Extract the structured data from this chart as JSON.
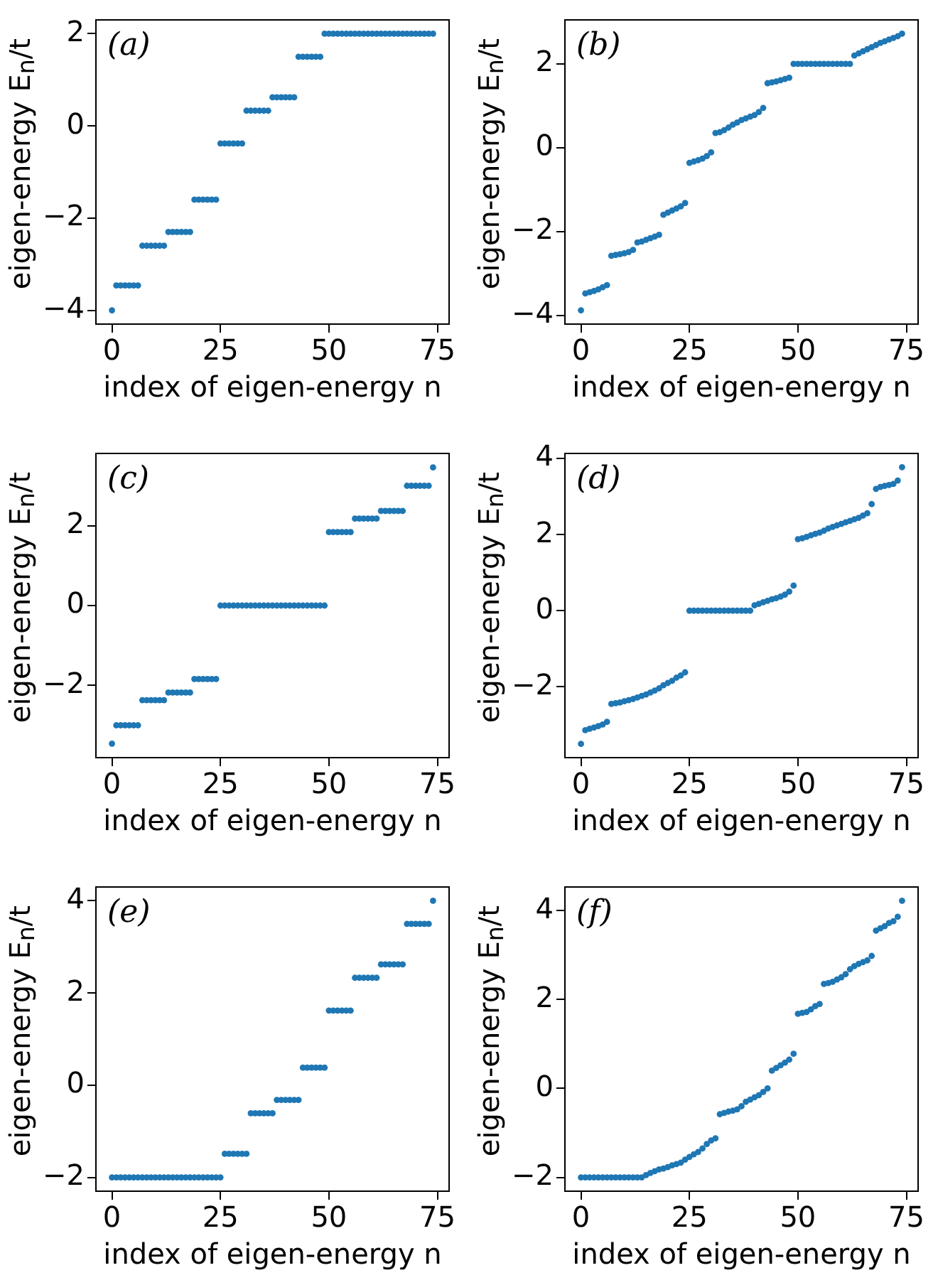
{
  "chart_data": [
    {
      "type": "scatter",
      "annotations": [
        "(a)"
      ],
      "xlabel": "index of eigen-energy n",
      "ylabel": "eigen-energy E$_{n}$/t",
      "marker": "circle",
      "color": "#1f77b4",
      "xlim": [
        -3.7,
        77.7
      ],
      "ylim": [
        -4.3,
        2.3
      ],
      "xticks": [
        0,
        25,
        50,
        75
      ],
      "yticks": [
        -4,
        -2,
        0,
        2
      ],
      "x": [
        0,
        1,
        2,
        3,
        4,
        5,
        6,
        7,
        8,
        9,
        10,
        11,
        12,
        13,
        14,
        15,
        16,
        17,
        18,
        19,
        20,
        21,
        22,
        23,
        24,
        25,
        26,
        27,
        28,
        29,
        30,
        31,
        32,
        33,
        34,
        35,
        36,
        37,
        38,
        39,
        40,
        41,
        42,
        43,
        44,
        45,
        46,
        47,
        48,
        49,
        50,
        51,
        52,
        53,
        54,
        55,
        56,
        57,
        58,
        59,
        60,
        61,
        62,
        63,
        64,
        65,
        66,
        67,
        68,
        69,
        70,
        71,
        72,
        73,
        74
      ],
      "values": [
        -4.0,
        -3.46,
        -3.46,
        -3.46,
        -3.46,
        -3.46,
        -3.46,
        -2.6,
        -2.6,
        -2.6,
        -2.6,
        -2.6,
        -2.6,
        -2.3,
        -2.3,
        -2.3,
        -2.3,
        -2.3,
        -2.3,
        -1.6,
        -1.6,
        -1.6,
        -1.6,
        -1.6,
        -1.6,
        -0.38,
        -0.38,
        -0.38,
        -0.38,
        -0.38,
        -0.38,
        0.33,
        0.33,
        0.33,
        0.33,
        0.33,
        0.33,
        0.62,
        0.62,
        0.62,
        0.62,
        0.62,
        0.62,
        1.5,
        1.5,
        1.5,
        1.5,
        1.5,
        1.5,
        2.0,
        2.0,
        2.0,
        2.0,
        2.0,
        2.0,
        2.0,
        2.0,
        2.0,
        2.0,
        2.0,
        2.0,
        2.0,
        2.0,
        2.0,
        2.0,
        2.0,
        2.0,
        2.0,
        2.0,
        2.0,
        2.0,
        2.0,
        2.0,
        2.0,
        2.0
      ]
    },
    {
      "type": "scatter",
      "annotations": [
        "(b)"
      ],
      "xlabel": "index of eigen-energy n",
      "ylabel": "eigen-energy E$_{n}$/t",
      "marker": "circle",
      "color": "#1f77b4",
      "xlim": [
        -3.7,
        77.7
      ],
      "ylim": [
        -4.21,
        3.05
      ],
      "xticks": [
        0,
        25,
        50,
        75
      ],
      "yticks": [
        -4,
        -2,
        0,
        2
      ],
      "x": [
        0,
        1,
        2,
        3,
        4,
        5,
        6,
        7,
        8,
        9,
        10,
        11,
        12,
        13,
        14,
        15,
        16,
        17,
        18,
        19,
        20,
        21,
        22,
        23,
        24,
        25,
        26,
        27,
        28,
        29,
        30,
        31,
        32,
        33,
        34,
        35,
        36,
        37,
        38,
        39,
        40,
        41,
        42,
        43,
        44,
        45,
        46,
        47,
        48,
        49,
        50,
        51,
        52,
        53,
        54,
        55,
        56,
        57,
        58,
        59,
        60,
        61,
        62,
        63,
        64,
        65,
        66,
        67,
        68,
        69,
        70,
        71,
        72,
        73,
        74
      ],
      "values": [
        -3.88,
        -3.48,
        -3.45,
        -3.42,
        -3.38,
        -3.33,
        -3.28,
        -2.58,
        -2.56,
        -2.54,
        -2.52,
        -2.49,
        -2.44,
        -2.26,
        -2.24,
        -2.2,
        -2.16,
        -2.12,
        -2.08,
        -1.6,
        -1.55,
        -1.5,
        -1.45,
        -1.4,
        -1.32,
        -0.36,
        -0.33,
        -0.3,
        -0.26,
        -0.2,
        -0.11,
        0.35,
        0.37,
        0.42,
        0.48,
        0.55,
        0.6,
        0.66,
        0.7,
        0.74,
        0.78,
        0.85,
        0.95,
        1.54,
        1.56,
        1.58,
        1.61,
        1.64,
        1.67,
        2.0,
        2.0,
        2.0,
        2.0,
        2.0,
        2.0,
        2.0,
        2.0,
        2.0,
        2.0,
        2.0,
        2.0,
        2.0,
        2.0,
        2.2,
        2.25,
        2.3,
        2.35,
        2.4,
        2.45,
        2.5,
        2.54,
        2.58,
        2.62,
        2.66,
        2.72
      ]
    },
    {
      "type": "scatter",
      "annotations": [
        "(c)"
      ],
      "xlabel": "index of eigen-energy n",
      "ylabel": "eigen-energy E$_{n}$/t",
      "marker": "circle",
      "color": "#1f77b4",
      "xlim": [
        -3.7,
        77.7
      ],
      "ylim": [
        -3.81,
        3.81
      ],
      "xticks": [
        0,
        25,
        50,
        75
      ],
      "yticks": [
        -2,
        0,
        2
      ],
      "x": [
        0,
        1,
        2,
        3,
        4,
        5,
        6,
        7,
        8,
        9,
        10,
        11,
        12,
        13,
        14,
        15,
        16,
        17,
        18,
        19,
        20,
        21,
        22,
        23,
        24,
        25,
        26,
        27,
        28,
        29,
        30,
        31,
        32,
        33,
        34,
        35,
        36,
        37,
        38,
        39,
        40,
        41,
        42,
        43,
        44,
        45,
        46,
        47,
        48,
        49,
        50,
        51,
        52,
        53,
        54,
        55,
        56,
        57,
        58,
        59,
        60,
        61,
        62,
        63,
        64,
        65,
        66,
        67,
        68,
        69,
        70,
        71,
        72,
        73,
        74
      ],
      "values": [
        -3.46,
        -3.0,
        -3.0,
        -3.0,
        -3.0,
        -3.0,
        -3.0,
        -2.37,
        -2.37,
        -2.37,
        -2.37,
        -2.37,
        -2.37,
        -2.18,
        -2.18,
        -2.18,
        -2.18,
        -2.18,
        -2.18,
        -1.84,
        -1.84,
        -1.84,
        -1.84,
        -1.84,
        -1.84,
        0,
        0,
        0,
        0,
        0,
        0,
        0,
        0,
        0,
        0,
        0,
        0,
        0,
        0,
        0,
        0,
        0,
        0,
        0,
        0,
        0,
        0,
        0,
        0,
        0,
        1.84,
        1.84,
        1.84,
        1.84,
        1.84,
        1.84,
        2.18,
        2.18,
        2.18,
        2.18,
        2.18,
        2.18,
        2.37,
        2.37,
        2.37,
        2.37,
        2.37,
        2.37,
        3.0,
        3.0,
        3.0,
        3.0,
        3.0,
        3.0,
        3.46
      ]
    },
    {
      "type": "scatter",
      "annotations": [
        "(d)"
      ],
      "xlabel": "index of eigen-energy n",
      "ylabel": "eigen-energy E$_{n}$/t",
      "marker": "circle",
      "color": "#1f77b4",
      "xlim": [
        -3.7,
        77.7
      ],
      "ylim": [
        -3.86,
        4.13
      ],
      "xticks": [
        0,
        25,
        50,
        75
      ],
      "yticks": [
        -2,
        0,
        2,
        4
      ],
      "x": [
        0,
        1,
        2,
        3,
        4,
        5,
        6,
        7,
        8,
        9,
        10,
        11,
        12,
        13,
        14,
        15,
        16,
        17,
        18,
        19,
        20,
        21,
        22,
        23,
        24,
        25,
        26,
        27,
        28,
        29,
        30,
        31,
        32,
        33,
        34,
        35,
        36,
        37,
        38,
        39,
        40,
        41,
        42,
        43,
        44,
        45,
        46,
        47,
        48,
        49,
        50,
        51,
        52,
        53,
        54,
        55,
        56,
        57,
        58,
        59,
        60,
        61,
        62,
        63,
        64,
        65,
        66,
        67,
        68,
        69,
        70,
        71,
        72,
        73,
        74
      ],
      "values": [
        -3.5,
        -3.14,
        -3.1,
        -3.07,
        -3.03,
        -2.99,
        -2.92,
        -2.45,
        -2.43,
        -2.41,
        -2.38,
        -2.35,
        -2.32,
        -2.28,
        -2.24,
        -2.2,
        -2.15,
        -2.1,
        -2.04,
        -1.96,
        -1.9,
        -1.84,
        -1.76,
        -1.7,
        -1.62,
        0,
        0,
        0,
        0,
        0,
        0,
        0,
        0,
        0,
        0,
        0,
        0,
        0,
        0,
        0,
        0.14,
        0.18,
        0.22,
        0.26,
        0.3,
        0.33,
        0.37,
        0.42,
        0.5,
        0.66,
        1.88,
        1.9,
        1.94,
        1.98,
        2.02,
        2.05,
        2.1,
        2.16,
        2.2,
        2.24,
        2.28,
        2.32,
        2.36,
        2.4,
        2.44,
        2.5,
        2.56,
        2.8,
        3.2,
        3.25,
        3.28,
        3.3,
        3.33,
        3.42,
        3.77
      ]
    },
    {
      "type": "scatter",
      "annotations": [
        "(e)"
      ],
      "xlabel": "index of eigen-energy n",
      "ylabel": "eigen-energy E$_{n}$/t",
      "marker": "circle",
      "color": "#1f77b4",
      "xlim": [
        -3.7,
        77.7
      ],
      "ylim": [
        -2.3,
        4.3
      ],
      "xticks": [
        0,
        25,
        50,
        75
      ],
      "yticks": [
        -2,
        0,
        2,
        4
      ],
      "x": [
        0,
        1,
        2,
        3,
        4,
        5,
        6,
        7,
        8,
        9,
        10,
        11,
        12,
        13,
        14,
        15,
        16,
        17,
        18,
        19,
        20,
        21,
        22,
        23,
        24,
        25,
        26,
        27,
        28,
        29,
        30,
        31,
        32,
        33,
        34,
        35,
        36,
        37,
        38,
        39,
        40,
        41,
        42,
        43,
        44,
        45,
        46,
        47,
        48,
        49,
        50,
        51,
        52,
        53,
        54,
        55,
        56,
        57,
        58,
        59,
        60,
        61,
        62,
        63,
        64,
        65,
        66,
        67,
        68,
        69,
        70,
        71,
        72,
        73,
        74
      ],
      "values": [
        -2,
        -2,
        -2,
        -2,
        -2,
        -2,
        -2,
        -2,
        -2,
        -2,
        -2,
        -2,
        -2,
        -2,
        -2,
        -2,
        -2,
        -2,
        -2,
        -2,
        -2,
        -2,
        -2,
        -2,
        -2,
        -2,
        -1.49,
        -1.49,
        -1.49,
        -1.49,
        -1.49,
        -1.49,
        -0.61,
        -0.61,
        -0.61,
        -0.61,
        -0.61,
        -0.61,
        -0.32,
        -0.32,
        -0.32,
        -0.32,
        -0.32,
        -0.32,
        0.38,
        0.38,
        0.38,
        0.38,
        0.38,
        0.38,
        1.62,
        1.62,
        1.62,
        1.62,
        1.62,
        1.62,
        2.33,
        2.33,
        2.33,
        2.33,
        2.33,
        2.33,
        2.62,
        2.62,
        2.62,
        2.62,
        2.62,
        2.62,
        3.5,
        3.5,
        3.5,
        3.5,
        3.5,
        3.5,
        4.0
      ]
    },
    {
      "type": "scatter",
      "annotations": [
        "(f)"
      ],
      "xlabel": "index of eigen-energy n",
      "ylabel": "eigen-energy E$_{n}$/t",
      "marker": "circle",
      "color": "#1f77b4",
      "xlim": [
        -3.7,
        77.7
      ],
      "ylim": [
        -2.31,
        4.53
      ],
      "xticks": [
        0,
        25,
        50,
        75
      ],
      "yticks": [
        -2,
        0,
        2,
        4
      ],
      "x": [
        0,
        1,
        2,
        3,
        4,
        5,
        6,
        7,
        8,
        9,
        10,
        11,
        12,
        13,
        14,
        15,
        16,
        17,
        18,
        19,
        20,
        21,
        22,
        23,
        24,
        25,
        26,
        27,
        28,
        29,
        30,
        31,
        32,
        33,
        34,
        35,
        36,
        37,
        38,
        39,
        40,
        41,
        42,
        43,
        44,
        45,
        46,
        47,
        48,
        49,
        50,
        51,
        52,
        53,
        54,
        55,
        56,
        57,
        58,
        59,
        60,
        61,
        62,
        63,
        64,
        65,
        66,
        67,
        68,
        69,
        70,
        71,
        72,
        73,
        74
      ],
      "values": [
        -2,
        -2,
        -2,
        -2,
        -2,
        -2,
        -2,
        -2,
        -2,
        -2,
        -2,
        -2,
        -2,
        -2,
        -2,
        -1.95,
        -1.9,
        -1.86,
        -1.82,
        -1.8,
        -1.77,
        -1.73,
        -1.7,
        -1.67,
        -1.6,
        -1.54,
        -1.48,
        -1.43,
        -1.35,
        -1.25,
        -1.17,
        -1.12,
        -0.58,
        -0.55,
        -0.52,
        -0.5,
        -0.47,
        -0.4,
        -0.3,
        -0.25,
        -0.2,
        -0.15,
        -0.08,
        0.0,
        0.4,
        0.46,
        0.52,
        0.58,
        0.65,
        0.78,
        1.68,
        1.7,
        1.72,
        1.78,
        1.85,
        1.9,
        2.35,
        2.37,
        2.4,
        2.45,
        2.5,
        2.57,
        2.68,
        2.75,
        2.8,
        2.84,
        2.88,
        2.98,
        3.55,
        3.6,
        3.65,
        3.72,
        3.76,
        3.86,
        4.22
      ]
    }
  ]
}
